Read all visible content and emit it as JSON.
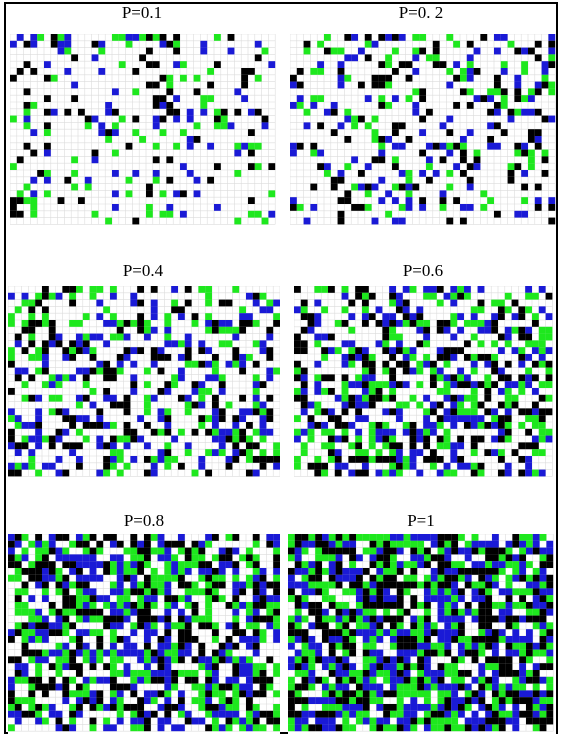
{
  "colors": {
    "blue": "#1a1ad6",
    "green": "#1ee81e",
    "black": "#000000",
    "gridline": "#dcdcdc",
    "background": "#ffffff"
  },
  "panels": [
    {
      "label": "P=0.1",
      "density": 0.1
    },
    {
      "label": "P=0. 2",
      "density": 0.2
    },
    {
      "label": "P=0.4",
      "density": 0.4
    },
    {
      "label": "P=0.6",
      "density": 0.6
    },
    {
      "label": "P=0.8",
      "density": 0.8
    },
    {
      "label": "P=1",
      "density": 1.0
    }
  ]
}
